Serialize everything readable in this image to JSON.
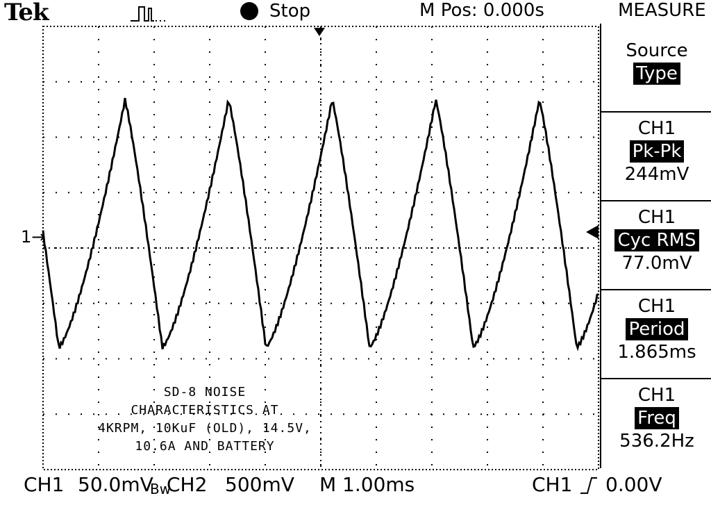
{
  "header": {
    "brand": "Tek",
    "status": "Stop",
    "horizontal_position": "M Pos: 0.000s",
    "menu_title": "MEASURE"
  },
  "menu": {
    "source_label": "Source",
    "type_label": "Type",
    "measurements": [
      {
        "channel": "CH1",
        "name": "Pk-Pk",
        "value": "244mV"
      },
      {
        "channel": "CH1",
        "name": "Cyc RMS",
        "value": "77.0mV"
      },
      {
        "channel": "CH1",
        "name": "Period",
        "value": "1.865ms"
      },
      {
        "channel": "CH1",
        "name": "Freq",
        "value": "536.2Hz"
      }
    ]
  },
  "annotation": {
    "lines": [
      "SD-8 NOISE",
      "CHARACTERISTICS AT",
      "4KRPM, 10KuF (OLD), 14.5V,",
      "10.6A AND BATTERY"
    ]
  },
  "footer": {
    "ch1": "CH1",
    "ch1_scale": "50.0mV",
    "bw": "Bw",
    "ch2": "CH2",
    "ch2_scale": "500mV",
    "timebase": "M 1.00ms",
    "trigger_source": "CH1",
    "trigger_level": "0.00V"
  },
  "marker": {
    "channel": "1"
  },
  "colors": {
    "trace": "#000000",
    "background": "#ffffff"
  }
}
